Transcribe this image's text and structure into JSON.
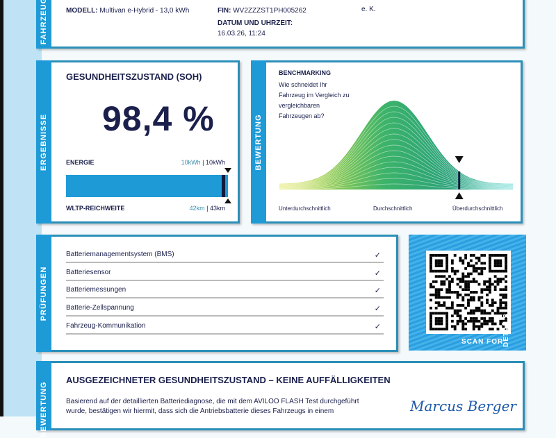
{
  "vehicle": {
    "tab": "FAHRZEUG",
    "model_label": "MODELL:",
    "model_value": "Multivan e-Hybrid - 13,0 kWh",
    "vin_label": "FIN:",
    "vin_value": "WV2ZZZST1PH005262",
    "date_label": "DATUM UND UHRZEIT:",
    "date_value": "16.03.26, 11:24",
    "dealer_suffix": "e. K."
  },
  "results": {
    "tab": "ERGEBNISSE",
    "title": "GESUNDHEITSZUSTAND (SOH)",
    "soh": "98,4 %",
    "soh_percent": 98.4,
    "energy_label": "ENERGIE",
    "energy_current": "10kWh",
    "energy_sep": "|",
    "energy_original": "10kWh",
    "range_label": "WLTP-REICHWEITE",
    "range_current": "42km",
    "range_sep": "|",
    "range_original": "43km"
  },
  "benchmark": {
    "tab": "BEWERTUNG",
    "title": "BENCHMARKING",
    "question": [
      "Wie schneidet Ihr",
      "Fahrzeug im Vergleich zu",
      "vergleichbaren",
      "Fahrzeugen ab?"
    ],
    "labels": [
      "Unterdurchschnittlich",
      "Durchschnittlich",
      "Überdurchschnittlich"
    ],
    "marker_position": 0.77
  },
  "checks": {
    "tab": "PRÜFUNGEN",
    "items": [
      {
        "label": "Batteriemanagementsystem (BMS)",
        "mark": "✓"
      },
      {
        "label": "Batteriesensor",
        "mark": "✓"
      },
      {
        "label": "Batteriemessungen",
        "mark": "✓"
      },
      {
        "label": "Batterie-Zellspannung",
        "mark": "✓"
      },
      {
        "label": "Fahrzeug-Kommunikation",
        "mark": "✓"
      }
    ]
  },
  "qr": {
    "caption": "SCAN FOR",
    "caption2": "DETAILS"
  },
  "assessment": {
    "tab": "BEWERTUNG",
    "title": "AUSGEZEICHNETER GESUNDHEITSZUSTAND – KEINE AUFFÄLLIGKEITEN",
    "text1": "Basierend auf der detaillierten Batteriediagnose, die mit dem AVILOO FLASH Test durchgeführt",
    "text2": "wurde, bestätigen wir hiermit, dass sich die Antriebsbatterie dieses Fahrzeugs in einem",
    "signature": "Marcus Berger"
  },
  "colors": {
    "accent": "#1e9ad6",
    "navy": "#1a1f4b",
    "border": "#2a8fb8"
  }
}
